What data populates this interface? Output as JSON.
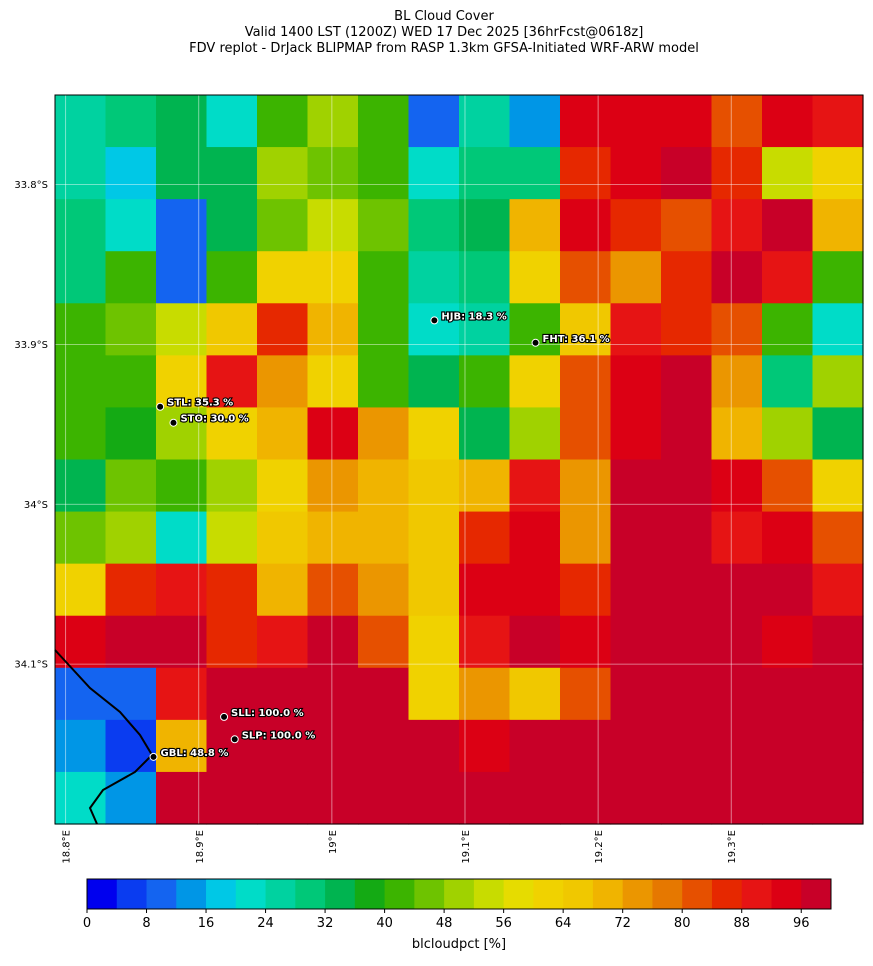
{
  "chart_data": {
    "type": "heatmap",
    "title": "BL Cloud Cover",
    "subtitle": "Valid 1400 LST (1200Z) WED 17 Dec 2025 [36hrFcst@0618z]",
    "subtitle2": "FDV replot - DrJack BLIPMAP from RASP 1.3km GFSA-Initiated WRF-ARW model",
    "xlim": [
      18.792,
      19.399
    ],
    "ylim": [
      -34.2,
      -33.744
    ],
    "xticks": [
      {
        "value": 18.8,
        "label": "18.8°E"
      },
      {
        "value": 18.9,
        "label": "18.9°E"
      },
      {
        "value": 19.0,
        "label": "19°E"
      },
      {
        "value": 19.1,
        "label": "19.1°E"
      },
      {
        "value": 19.2,
        "label": "19.2°E"
      },
      {
        "value": 19.3,
        "label": "19.3°E"
      }
    ],
    "yticks": [
      {
        "value": -33.8,
        "label": "33.8°S"
      },
      {
        "value": -33.9,
        "label": "33.9°S"
      },
      {
        "value": -34.0,
        "label": "34°S"
      },
      {
        "value": -34.1,
        "label": "34.1°S"
      }
    ],
    "grid": true,
    "values": [
      [
        25,
        28,
        35,
        20,
        40,
        50,
        42,
        8,
        25,
        12,
        92,
        95,
        92,
        80,
        92,
        90
      ],
      [
        25,
        18,
        35,
        35,
        50,
        45,
        40,
        20,
        30,
        30,
        85,
        95,
        96,
        85,
        55,
        60
      ],
      [
        30,
        20,
        10,
        35,
        45,
        55,
        45,
        30,
        35,
        70,
        92,
        85,
        80,
        90,
        96,
        70
      ],
      [
        30,
        40,
        8,
        42,
        60,
        60,
        40,
        25,
        30,
        60,
        80,
        75,
        85,
        96,
        90,
        40
      ],
      [
        40,
        45,
        55,
        65,
        85,
        70,
        40,
        22,
        25,
        40,
        65,
        90,
        85,
        80,
        40,
        20
      ],
      [
        40,
        40,
        60,
        90,
        75,
        60,
        40,
        35,
        40,
        60,
        80,
        95,
        96,
        75,
        30,
        50
      ],
      [
        40,
        38,
        50,
        60,
        70,
        92,
        75,
        60,
        35,
        50,
        80,
        95,
        96,
        70,
        50,
        35
      ],
      [
        35,
        45,
        40,
        50,
        60,
        75,
        70,
        65,
        70,
        90,
        75,
        96,
        96,
        95,
        80,
        60
      ],
      [
        45,
        50,
        20,
        55,
        65,
        70,
        70,
        65,
        85,
        92,
        75,
        96,
        96,
        90,
        92,
        80
      ],
      [
        60,
        85,
        88,
        85,
        70,
        80,
        75,
        65,
        92,
        95,
        85,
        96,
        96,
        96,
        96,
        90
      ],
      [
        95,
        96,
        96,
        85,
        90,
        96,
        80,
        60,
        90,
        96,
        92,
        96,
        96,
        96,
        92,
        96
      ],
      [
        10,
        8,
        90,
        96,
        96,
        96,
        96,
        60,
        75,
        65,
        80,
        96,
        96,
        96,
        96,
        96
      ],
      [
        15,
        5,
        70,
        96,
        96,
        96,
        96,
        96,
        92,
        96,
        96,
        96,
        96,
        96,
        96,
        96
      ],
      [
        20,
        15,
        96,
        96,
        96,
        96,
        96,
        96,
        96,
        96,
        96,
        96,
        96,
        96,
        96,
        96
      ]
    ],
    "colormap": [
      "#0000ee",
      "#0a3cf0",
      "#1464f0",
      "#0096e6",
      "#00c8e6",
      "#00dcc8",
      "#00d2a0",
      "#00c878",
      "#00b450",
      "#14aa14",
      "#3cb400",
      "#6ec300",
      "#a0d200",
      "#c8dc00",
      "#e6dc00",
      "#f0d200",
      "#f0c800",
      "#f0b400",
      "#eb9600",
      "#e67800",
      "#e65000",
      "#e62800",
      "#e61414",
      "#dc0014",
      "#c80028"
    ],
    "clim": [
      0,
      100
    ],
    "cticks": [
      0,
      8,
      16,
      24,
      32,
      40,
      48,
      56,
      64,
      72,
      80,
      88,
      96
    ],
    "colorbar_label": "blcloudpct [%]",
    "stations": {
      "values": [
        18.3,
        36.1,
        35.3,
        30.0,
        100.0,
        100.0,
        48.8
      ],
      "value_labels": [
        "HJB: 18.3 %",
        "FHT: 36.1 %",
        "STL: 35.3 %",
        "STO: 30.0 %",
        "SLL: 100.0 %",
        "SLP: 100.0 %",
        "GBL: 48.8 %"
      ],
      "lon": [
        19.077,
        19.153,
        18.871,
        18.881,
        18.919,
        18.927,
        18.866
      ],
      "lat": [
        -33.885,
        -33.899,
        -33.939,
        -33.949,
        -34.133,
        -34.147,
        -34.158
      ]
    }
  }
}
